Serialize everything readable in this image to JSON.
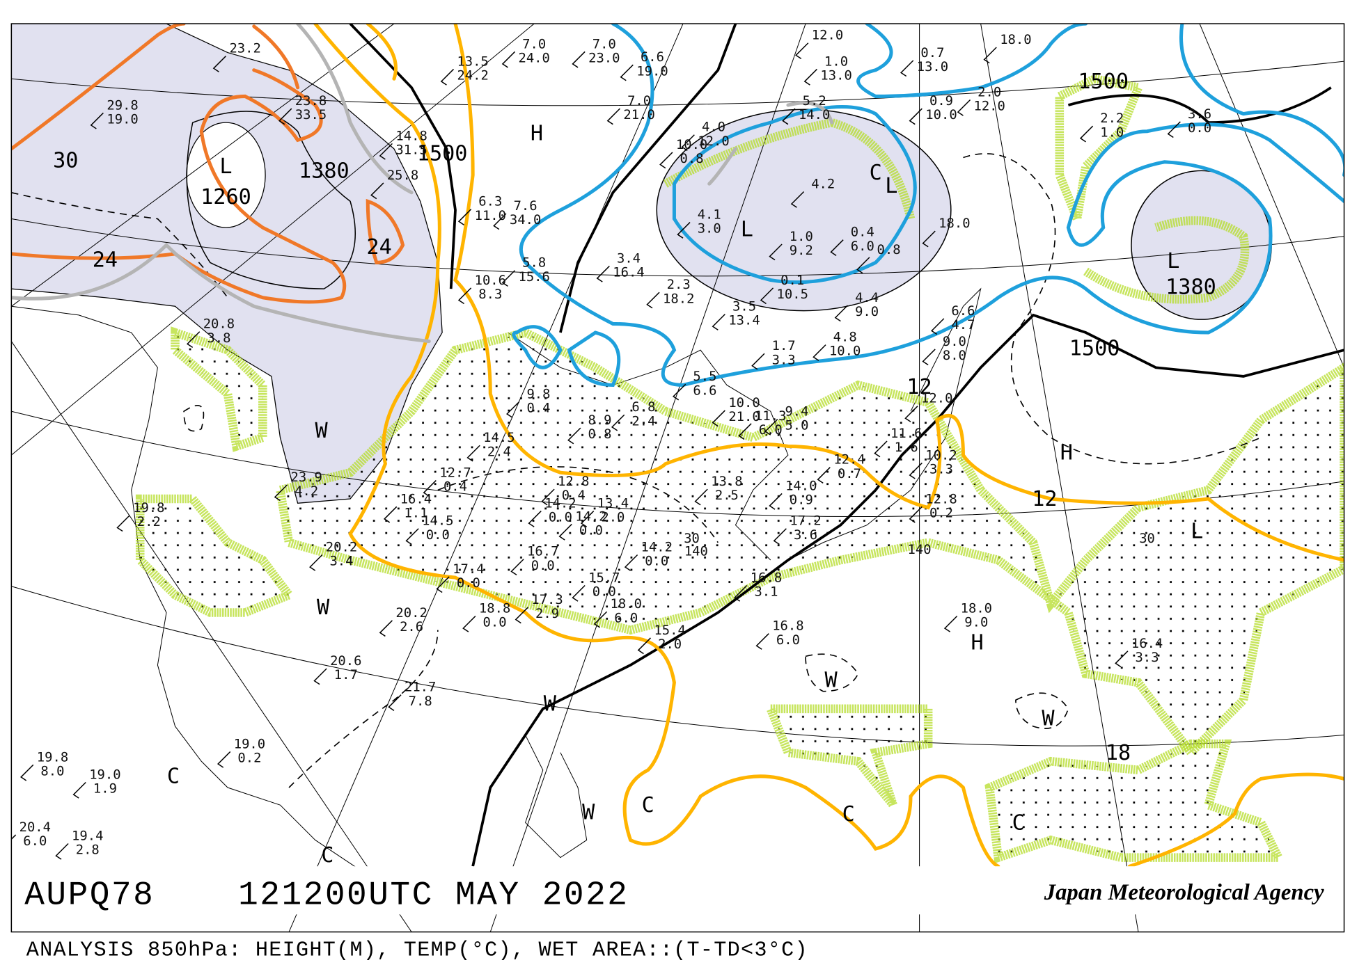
{
  "header": {
    "chart_id": "AUPQ78",
    "valid_time": "121200UTC MAY 2022",
    "agency": "Japan Meteorological Agency"
  },
  "caption": "ANALYSIS 850hPa: HEIGHT(M), TEMP(°C), WET AREA::(T-TD<3°C)",
  "colors": {
    "height_contour": "#000000",
    "temp_dashed": "#000000",
    "isotherm_6": "#1ea0dc",
    "isotherm_18": "#ffb400",
    "isotherm_24_30": "#f07828",
    "isotherm_gray": "#b4b4b4",
    "cold_area_fill": "#e1e1f0",
    "wet_area_halo": "#b4dc28"
  },
  "map_labels": [
    "H",
    "L",
    "1260",
    "1380",
    "1500",
    "30",
    "24",
    "24",
    "C",
    "L",
    "L",
    "1500",
    "L",
    "1380",
    "1500",
    "H",
    "12",
    "L",
    "W",
    "W",
    "W",
    "H",
    "W",
    "W",
    "18",
    "C",
    "W",
    "C",
    "C",
    "C",
    "C",
    "30",
    "30",
    "140",
    "140",
    "12"
  ],
  "stations": [
    [
      "29.8",
      "19.0"
    ],
    [
      "23.2",
      ""
    ],
    [
      "23.8",
      "33.5"
    ],
    [
      "14.8",
      "31.5"
    ],
    [
      "25.8",
      ""
    ],
    [
      "13.5",
      "24.2"
    ],
    [
      "7.0",
      "24.0"
    ],
    [
      "7.0",
      "23.0"
    ],
    [
      "6.6",
      "19.0"
    ],
    [
      "7.0",
      "21.0"
    ],
    [
      "7.6",
      "34.0"
    ],
    [
      "6.3",
      "11.0"
    ],
    [
      "5.8",
      "15.6"
    ],
    [
      "10.6",
      "8.3"
    ],
    [
      "3.4",
      "16.4"
    ],
    [
      "2.3",
      "18.2"
    ],
    [
      "3.5",
      "13.4"
    ],
    [
      "1.7",
      "3.3"
    ],
    [
      "4.8",
      "10.0"
    ],
    [
      "4.4",
      "9.0"
    ],
    [
      "6.6",
      "4.7"
    ],
    [
      "9.0",
      "8.0"
    ],
    [
      "12.0",
      ""
    ],
    [
      "4.0",
      "12.0"
    ],
    [
      "10.0",
      "0.8"
    ],
    [
      "5.2",
      "14.0"
    ],
    [
      "1.0",
      "13.0"
    ],
    [
      "12.0",
      ""
    ],
    [
      "0.7",
      "13.0"
    ],
    [
      "0.9",
      "10.0"
    ],
    [
      "2.0",
      "12.0"
    ],
    [
      "18.0",
      ""
    ],
    [
      "3.6",
      "0.0"
    ],
    [
      "2.2",
      "1.0"
    ],
    [
      "4.2",
      ""
    ],
    [
      "4.1",
      "3.0"
    ],
    [
      "1.0",
      "9.2"
    ],
    [
      "0.4",
      "6.0"
    ],
    [
      "0.8",
      ""
    ],
    [
      "0.1",
      "10.5"
    ],
    [
      "18.0",
      ""
    ],
    [
      "5.5",
      "6.6"
    ],
    [
      "10.0",
      "21.0"
    ],
    [
      "11.3",
      "6.0"
    ],
    [
      "9.4",
      "5.0"
    ],
    [
      "11.6",
      "1.6"
    ],
    [
      "10.2",
      "3.3"
    ],
    [
      "12.4",
      "0.7"
    ],
    [
      "13.8",
      "2.5"
    ],
    [
      "14.0",
      "0.9"
    ],
    [
      "17.2",
      "3.6"
    ],
    [
      "12.8",
      "0.2"
    ],
    [
      "16.8",
      "3.1"
    ],
    [
      "9.8",
      "0.4"
    ],
    [
      "8.9",
      "0.8"
    ],
    [
      "6.8",
      "2.4"
    ],
    [
      "14.5",
      "2.4"
    ],
    [
      "12.7",
      "0.4"
    ],
    [
      "12.8",
      "0.4"
    ],
    [
      "13.4",
      "2.0"
    ],
    [
      "14.2",
      "0.0"
    ],
    [
      "14.2",
      "0.0"
    ],
    [
      "14.2",
      "0.0"
    ],
    [
      "16.4",
      "1.1"
    ],
    [
      "14.5",
      "0.0"
    ],
    [
      "16.7",
      "0.0"
    ],
    [
      "17.4",
      "0.0"
    ],
    [
      "15.7",
      "0.0"
    ],
    [
      "18.8",
      "0.0"
    ],
    [
      "17.3",
      "2.9"
    ],
    [
      "18.0",
      "6.0"
    ],
    [
      "15.4",
      "2.0"
    ],
    [
      "16.8",
      "6.0"
    ],
    [
      "18.0",
      "9.0"
    ],
    [
      "16.4",
      "3.3"
    ],
    [
      "23.9",
      "4.2"
    ],
    [
      "20.2",
      "3.4"
    ],
    [
      "20.2",
      "2.6"
    ],
    [
      "20.6",
      "1.7"
    ],
    [
      "21.7",
      "7.8"
    ],
    [
      "19.0",
      "0.2"
    ],
    [
      "19.8",
      "2.2"
    ],
    [
      "19.8",
      "8.0"
    ],
    [
      "19.0",
      "1.9"
    ],
    [
      "19.4",
      "2.8"
    ],
    [
      "20.4",
      "6.0"
    ],
    [
      "20.8",
      "3.8"
    ]
  ]
}
